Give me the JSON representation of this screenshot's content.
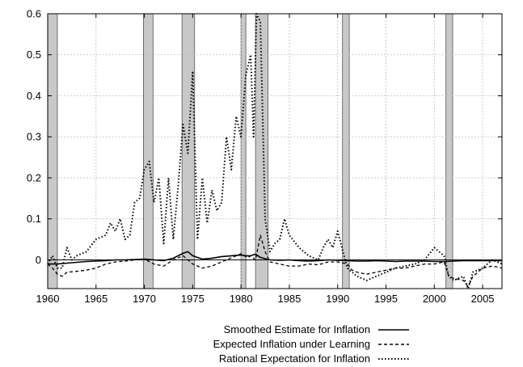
{
  "chart_data": {
    "type": "line",
    "title": "",
    "xlabel": "",
    "ylabel": "",
    "xlim": [
      1960,
      2007
    ],
    "ylim": [
      -0.07,
      0.6
    ],
    "x_ticks": [
      1960,
      1965,
      1970,
      1975,
      1980,
      1985,
      1990,
      1995,
      2000,
      2005
    ],
    "y_ticks": [
      0,
      0.1,
      0.2,
      0.3,
      0.4,
      0.5,
      0.6
    ],
    "x_tick_labels": [
      "1960",
      "1965",
      "1970",
      "1975",
      "1980",
      "1985",
      "1990",
      "1995",
      "2000",
      "2005"
    ],
    "y_tick_labels": [
      "0",
      "0.1",
      "0.2",
      "0.3",
      "0.4",
      "0.5",
      "0.6"
    ],
    "grid": true,
    "zero_line": true,
    "legend_position": "bottom-right, below plot",
    "recession_shading": [
      [
        1960.0,
        1961.0
      ],
      [
        1969.9,
        1970.9
      ],
      [
        1973.9,
        1975.2
      ],
      [
        1980.0,
        1980.5
      ],
      [
        1981.5,
        1982.8
      ],
      [
        1990.5,
        1991.2
      ],
      [
        2001.2,
        2001.9
      ]
    ],
    "series": [
      {
        "name": "Smoothed Estimate for Inflation",
        "style": "solid",
        "x": [
          1960,
          1961,
          1962,
          1963,
          1964,
          1965,
          1966,
          1967,
          1968,
          1969,
          1970,
          1971,
          1972,
          1973,
          1974,
          1974.5,
          1975,
          1976,
          1977,
          1978,
          1979,
          1980,
          1980.5,
          1981,
          1981.5,
          1982,
          1983,
          1984,
          1985,
          1986,
          1987,
          1988,
          1989,
          1990,
          1991,
          1992,
          1993,
          1994,
          1995,
          1996,
          1997,
          1998,
          1999,
          2000,
          2001,
          2002,
          2003,
          2004,
          2005,
          2006,
          2007
        ],
        "values": [
          -0.01,
          -0.01,
          -0.008,
          -0.006,
          -0.004,
          -0.003,
          -0.002,
          0.0,
          0.0,
          0.001,
          0.002,
          0.0,
          -0.002,
          0.004,
          0.016,
          0.02,
          0.01,
          0.002,
          0.004,
          0.008,
          0.01,
          0.012,
          0.01,
          0.01,
          0.014,
          0.006,
          0.0,
          -0.001,
          0.0,
          -0.002,
          -0.003,
          -0.002,
          0.0,
          -0.001,
          -0.002,
          -0.003,
          -0.003,
          -0.002,
          -0.003,
          -0.004,
          -0.003,
          -0.003,
          -0.003,
          -0.004,
          -0.004,
          -0.003,
          -0.002,
          -0.002,
          -0.002,
          -0.002,
          -0.002
        ]
      },
      {
        "name": "Expected Inflation under Learning",
        "style": "dashed",
        "x": [
          1960,
          1960.5,
          1961,
          1961.5,
          1962,
          1963,
          1964,
          1965,
          1966,
          1967,
          1968,
          1969,
          1970,
          1971,
          1972,
          1973,
          1974,
          1975,
          1976,
          1977,
          1978,
          1979,
          1980,
          1980.7,
          1981,
          1981.5,
          1982,
          1982.5,
          1983,
          1984,
          1985,
          1986,
          1987,
          1988,
          1989,
          1990,
          1991,
          1991.5,
          1992,
          1993,
          1994,
          1995,
          1996,
          1997,
          1998,
          1999,
          2000,
          2001,
          2001.5,
          2002,
          2003,
          2003.5,
          2004,
          2005,
          2006,
          2007
        ],
        "values": [
          -0.01,
          -0.02,
          -0.035,
          -0.04,
          -0.03,
          -0.028,
          -0.025,
          -0.02,
          -0.01,
          -0.005,
          -0.003,
          0.0,
          0.002,
          -0.01,
          -0.015,
          0.0,
          0.01,
          -0.01,
          -0.02,
          -0.015,
          -0.005,
          0.005,
          0.015,
          0.005,
          0.01,
          0.0,
          0.06,
          0.02,
          -0.005,
          -0.01,
          -0.015,
          -0.015,
          -0.01,
          -0.012,
          -0.005,
          -0.005,
          -0.01,
          -0.025,
          -0.03,
          -0.035,
          -0.03,
          -0.025,
          -0.02,
          -0.02,
          -0.015,
          -0.01,
          -0.01,
          -0.005,
          -0.04,
          -0.045,
          -0.05,
          -0.065,
          -0.04,
          -0.02,
          -0.015,
          -0.02
        ]
      },
      {
        "name": "Rational Expectation for Inflation",
        "style": "dotted",
        "x": [
          1960,
          1960.5,
          1961,
          1961.5,
          1962,
          1962.5,
          1963,
          1964,
          1965,
          1966,
          1966.5,
          1967,
          1967.5,
          1968,
          1968.5,
          1969,
          1969.5,
          1970,
          1970.5,
          1971,
          1971.5,
          1972,
          1972.5,
          1973,
          1973.5,
          1974,
          1974.5,
          1975,
          1975.5,
          1976,
          1976.5,
          1977,
          1977.5,
          1978,
          1978.5,
          1979,
          1979.5,
          1980,
          1980.5,
          1981,
          1981.3,
          1981.6,
          1982,
          1982.5,
          1983,
          1983.5,
          1984,
          1984.5,
          1985,
          1986,
          1987,
          1988,
          1988.5,
          1989,
          1989.5,
          1990,
          1991,
          1992,
          1993,
          1994,
          1995,
          1996,
          1997,
          1998,
          1999,
          2000,
          2001,
          2001.5,
          2002,
          2003,
          2003.5,
          2004,
          2005,
          2006,
          2007
        ],
        "values": [
          -0.01,
          0.01,
          -0.02,
          -0.02,
          0.03,
          0.0,
          0.01,
          0.02,
          0.05,
          0.06,
          0.09,
          0.07,
          0.1,
          0.05,
          0.06,
          0.14,
          0.15,
          0.22,
          0.24,
          0.14,
          0.2,
          0.04,
          0.2,
          0.05,
          0.18,
          0.33,
          0.26,
          0.46,
          0.05,
          0.2,
          0.09,
          0.17,
          0.12,
          0.14,
          0.3,
          0.22,
          0.35,
          0.3,
          0.45,
          0.5,
          0.3,
          0.6,
          0.58,
          0.1,
          0.02,
          0.04,
          0.05,
          0.1,
          0.06,
          0.03,
          0.01,
          0.0,
          0.03,
          0.05,
          0.03,
          0.07,
          -0.02,
          -0.04,
          -0.05,
          -0.04,
          -0.03,
          -0.02,
          -0.015,
          -0.01,
          0.0,
          0.03,
          0.01,
          -0.04,
          -0.05,
          -0.04,
          -0.07,
          -0.03,
          -0.02,
          0.0,
          -0.01
        ]
      }
    ]
  }
}
